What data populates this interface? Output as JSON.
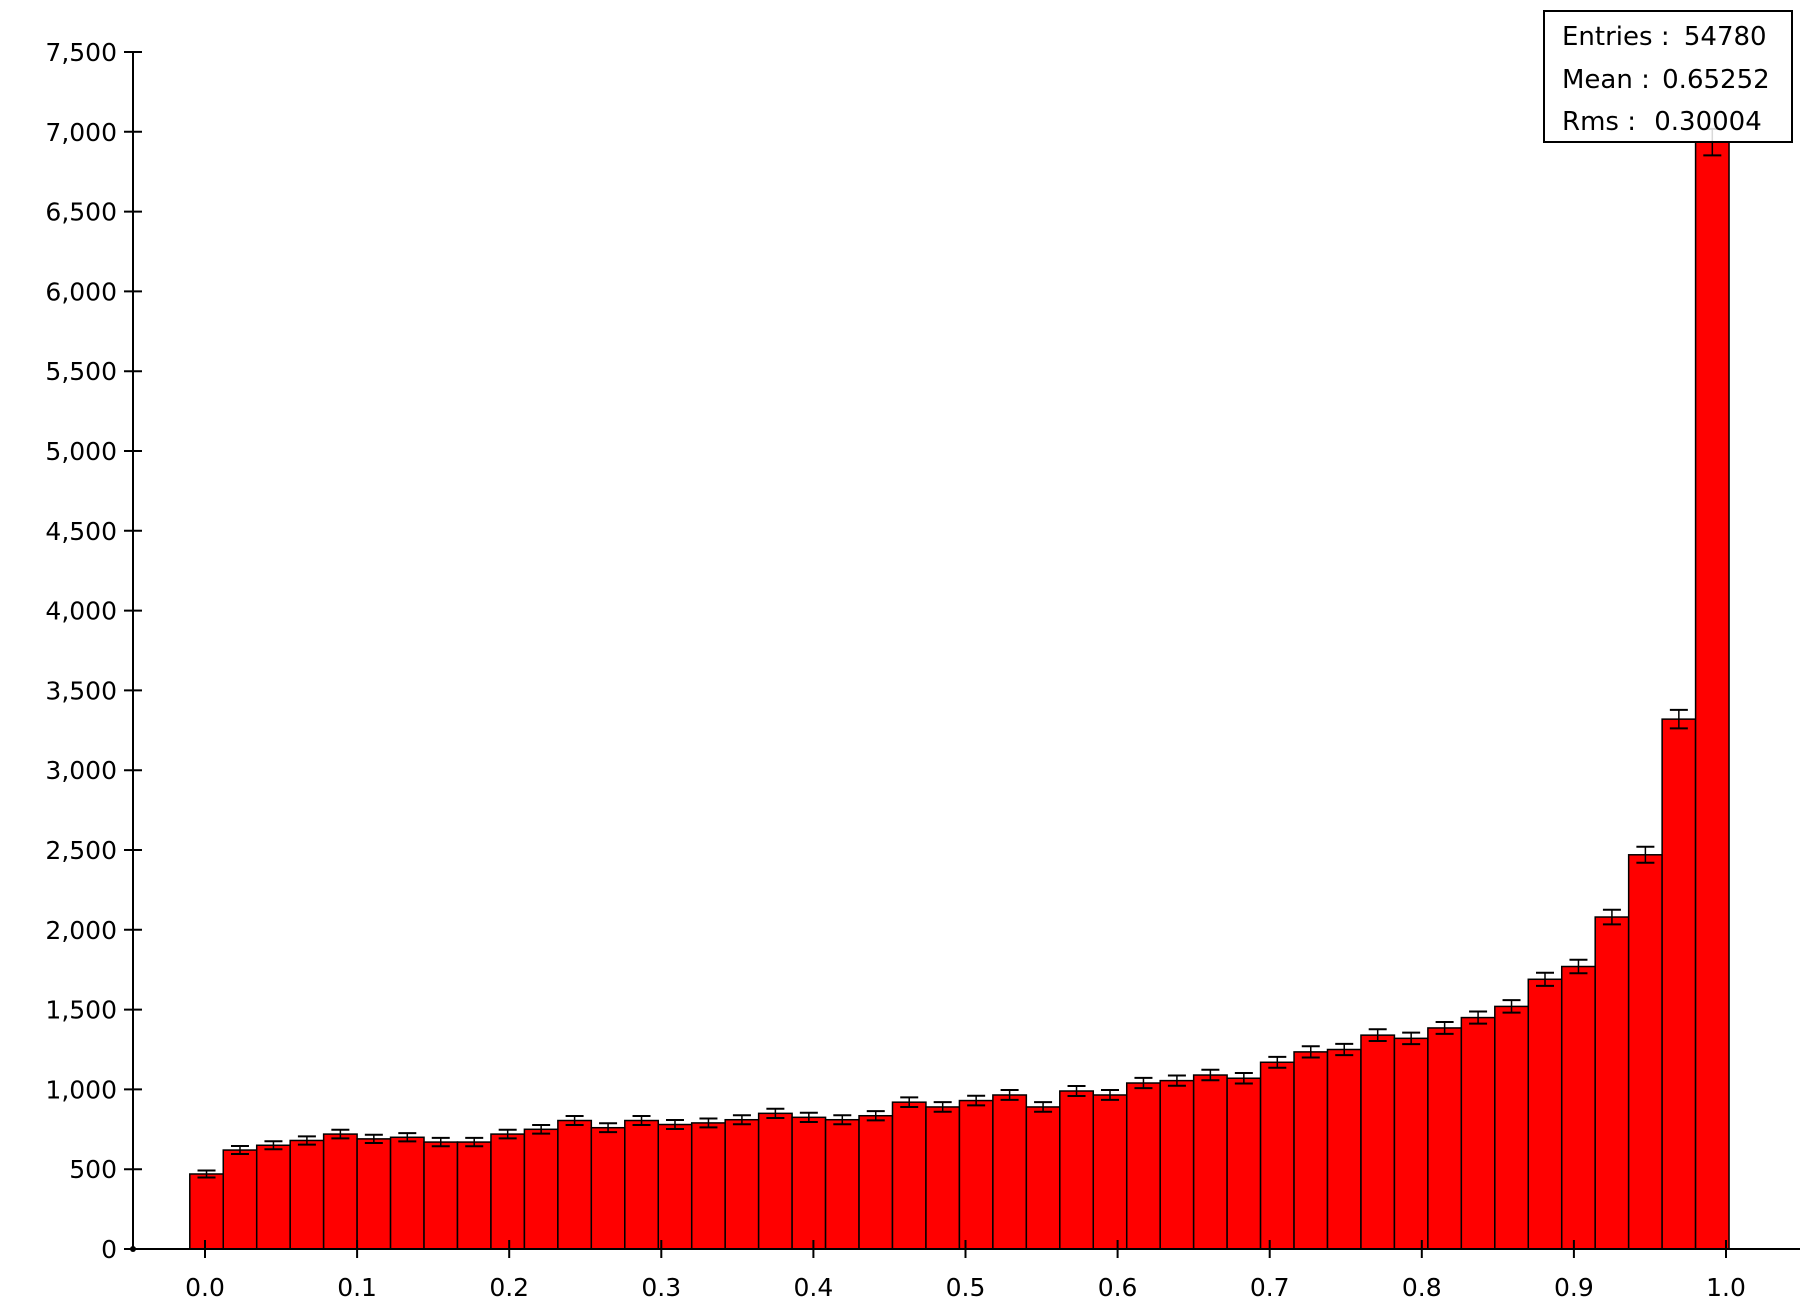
{
  "chart_data": {
    "type": "bar",
    "title": "",
    "xlabel": "",
    "ylabel": "",
    "xlim": [
      -0.05,
      1.05
    ],
    "ylim": [
      0,
      7500
    ],
    "bin_edges": {
      "start": -0.01,
      "width": 0.022
    },
    "x_ticks": [
      {
        "value": 0.0,
        "label": "0.0"
      },
      {
        "value": 0.1,
        "label": "0.1"
      },
      {
        "value": 0.2,
        "label": "0.2"
      },
      {
        "value": 0.3,
        "label": "0.3"
      },
      {
        "value": 0.4,
        "label": "0.4"
      },
      {
        "value": 0.5,
        "label": "0.5"
      },
      {
        "value": 0.6,
        "label": "0.6"
      },
      {
        "value": 0.7,
        "label": "0.7"
      },
      {
        "value": 0.8,
        "label": "0.8"
      },
      {
        "value": 0.9,
        "label": "0.9"
      },
      {
        "value": 1.0,
        "label": "1.0"
      }
    ],
    "y_ticks": [
      {
        "value": 0,
        "label": "0"
      },
      {
        "value": 500,
        "label": "500"
      },
      {
        "value": 1000,
        "label": "1,000"
      },
      {
        "value": 1500,
        "label": "1,500"
      },
      {
        "value": 2000,
        "label": "2,000"
      },
      {
        "value": 2500,
        "label": "2,500"
      },
      {
        "value": 3000,
        "label": "3,000"
      },
      {
        "value": 3500,
        "label": "3,500"
      },
      {
        "value": 4000,
        "label": "4,000"
      },
      {
        "value": 4500,
        "label": "4,500"
      },
      {
        "value": 5000,
        "label": "5,000"
      },
      {
        "value": 5500,
        "label": "5,500"
      },
      {
        "value": 6000,
        "label": "6,000"
      },
      {
        "value": 6500,
        "label": "6,500"
      },
      {
        "value": 7000,
        "label": "7,000"
      },
      {
        "value": 7500,
        "label": "7,500"
      }
    ],
    "values": [
      470,
      620,
      650,
      680,
      720,
      690,
      700,
      670,
      670,
      720,
      750,
      805,
      760,
      805,
      780,
      790,
      810,
      850,
      825,
      810,
      835,
      920,
      890,
      930,
      965,
      890,
      990,
      965,
      1040,
      1055,
      1090,
      1070,
      1170,
      1235,
      1250,
      1340,
      1320,
      1385,
      1450,
      1520,
      1690,
      1770,
      2080,
      2470,
      3320,
      6935
    ],
    "errors": [
      22,
      25,
      25,
      26,
      27,
      26,
      26,
      26,
      26,
      27,
      27,
      28,
      28,
      28,
      28,
      28,
      28,
      29,
      29,
      28,
      29,
      30,
      30,
      30,
      31,
      30,
      31,
      31,
      32,
      32,
      33,
      33,
      34,
      35,
      35,
      37,
      36,
      37,
      38,
      39,
      41,
      42,
      46,
      50,
      58,
      83
    ],
    "colors": {
      "bar": "#ff0000",
      "edge": "#000000",
      "axis": "#000000"
    },
    "legend_placement": "top-right",
    "grid": false
  },
  "stats_box": {
    "entries": {
      "label": "Entries :",
      "value": "54780"
    },
    "mean": {
      "label": "Mean :",
      "value": "0.65252"
    },
    "rms": {
      "label": "Rms :",
      "value": "0.30004"
    }
  }
}
